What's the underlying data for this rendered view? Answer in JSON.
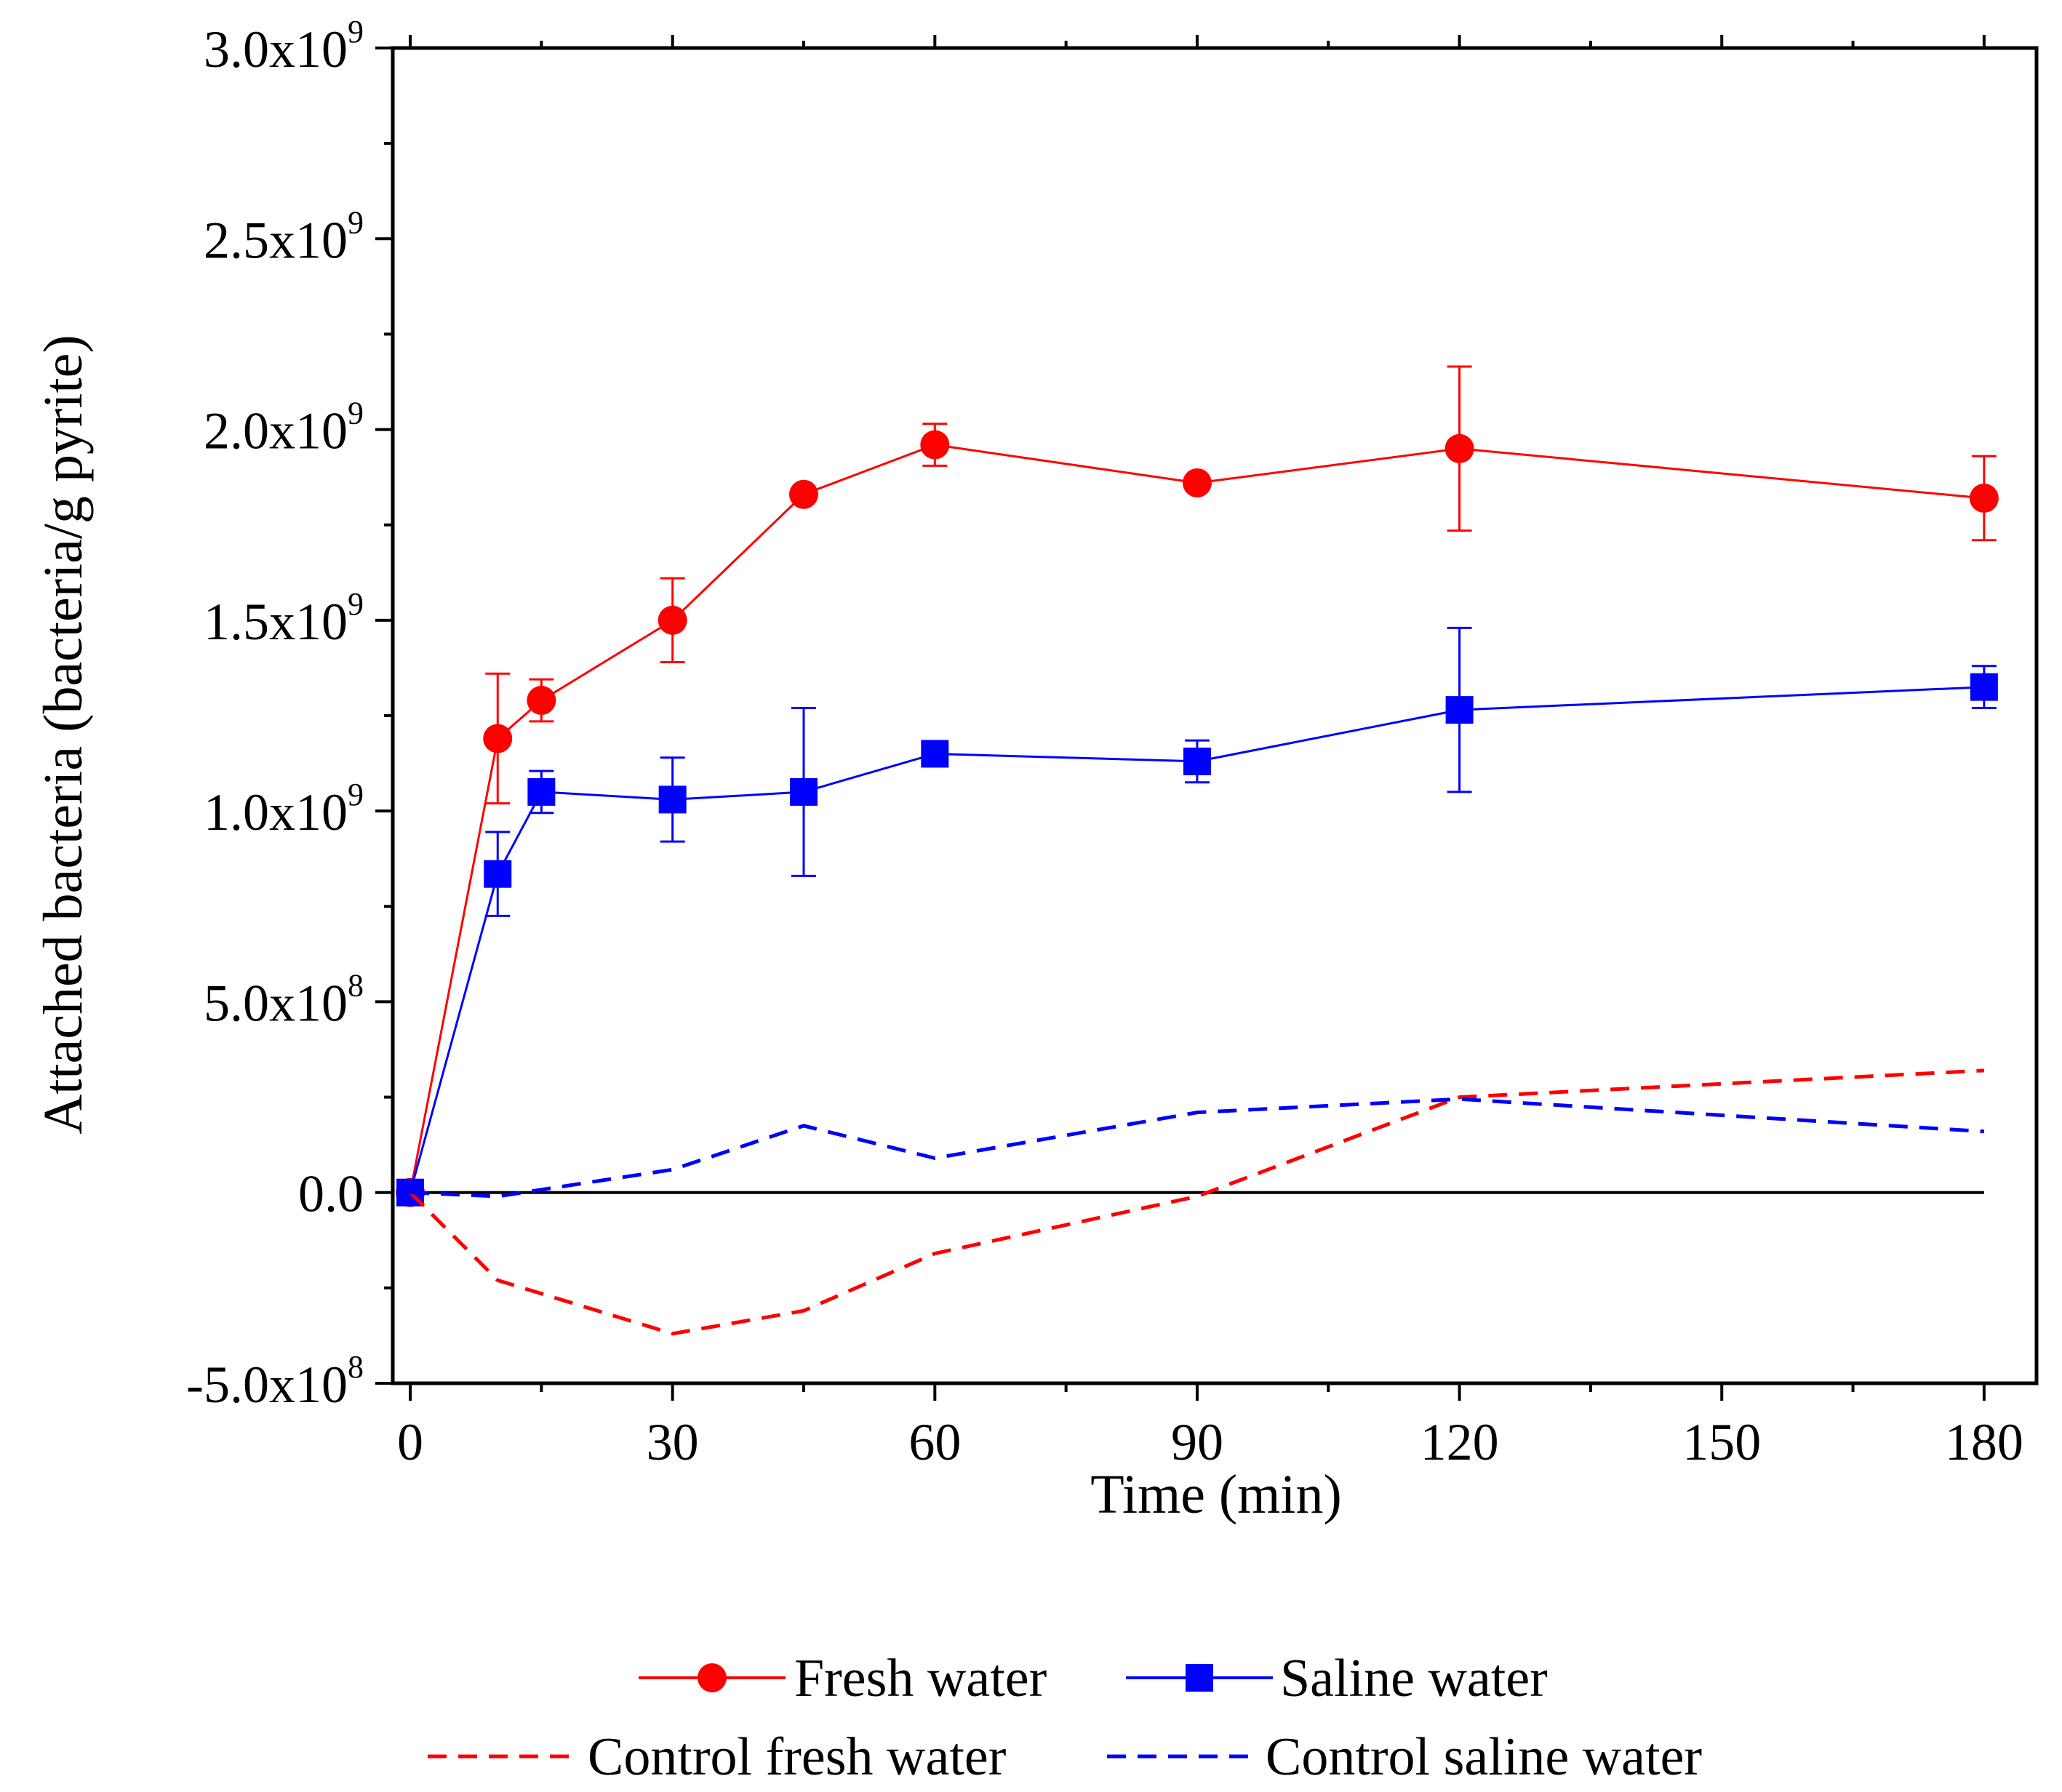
{
  "chart_data": {
    "type": "line",
    "xlabel": "Time (min)",
    "ylabel": "Attached bacteria (bacteria/g pyrite)",
    "xlim": [
      -2,
      186
    ],
    "ylim": [
      -500000000,
      3000000000
    ],
    "x_ticks": [
      0,
      30,
      60,
      90,
      120,
      150,
      180
    ],
    "x_tick_labels": [
      "0",
      "30",
      "60",
      "90",
      "120",
      "150",
      "180"
    ],
    "y_ticks": [
      {
        "value": 3000000000,
        "mantissa": "3.0x10",
        "exp": "9"
      },
      {
        "value": 2500000000,
        "mantissa": "2.5x10",
        "exp": "9"
      },
      {
        "value": 2000000000,
        "mantissa": "2.0x10",
        "exp": "9"
      },
      {
        "value": 1500000000,
        "mantissa": "1.5x10",
        "exp": "9"
      },
      {
        "value": 1000000000,
        "mantissa": "1.0x10",
        "exp": "9"
      },
      {
        "value": 500000000,
        "mantissa": "5.0x10",
        "exp": "8"
      },
      {
        "value": 0,
        "mantissa": "0.0",
        "exp": ""
      },
      {
        "value": -500000000,
        "mantissa": "-5.0x10",
        "exp": "8"
      }
    ],
    "zero_line": true,
    "grid": false,
    "legend_position": "bottom",
    "series": [
      {
        "name": "Fresh water",
        "color": "#ff0000",
        "style": "solid",
        "marker": "circle",
        "x": [
          0,
          10,
          15,
          30,
          45,
          60,
          90,
          120,
          180
        ],
        "y": [
          0,
          1190000000,
          1290000000,
          1500000000,
          1830000000,
          1960000000,
          1860000000,
          1950000000,
          1820000000
        ],
        "err": [
          0,
          170000000,
          55000000,
          110000000,
          0,
          55000000,
          0,
          215000000,
          110000000
        ]
      },
      {
        "name": "Saline water",
        "color": "#0000ff",
        "style": "solid",
        "marker": "square",
        "x": [
          0,
          10,
          15,
          30,
          45,
          60,
          90,
          120,
          180
        ],
        "y": [
          0,
          835000000,
          1050000000,
          1030000000,
          1050000000,
          1150000000,
          1130000000,
          1265000000,
          1325000000
        ],
        "err": [
          0,
          110000000,
          55000000,
          110000000,
          220000000,
          0,
          55000000,
          215000000,
          55000000
        ]
      },
      {
        "name": "Control fresh water",
        "color": "#ff0000",
        "style": "dashed",
        "marker": "none",
        "x": [
          0,
          10,
          30,
          45,
          60,
          90,
          120,
          180
        ],
        "y": [
          0,
          -230000000,
          -370000000,
          -310000000,
          -160000000,
          -10000000,
          250000000,
          320000000
        ],
        "err": []
      },
      {
        "name": "Control saline water",
        "color": "#0000ff",
        "style": "dashed",
        "marker": "none",
        "x": [
          0,
          10,
          30,
          45,
          60,
          90,
          120,
          180
        ],
        "y": [
          0,
          -10000000,
          60000000,
          175000000,
          90000000,
          210000000,
          245000000,
          160000000
        ],
        "err": []
      }
    ]
  }
}
